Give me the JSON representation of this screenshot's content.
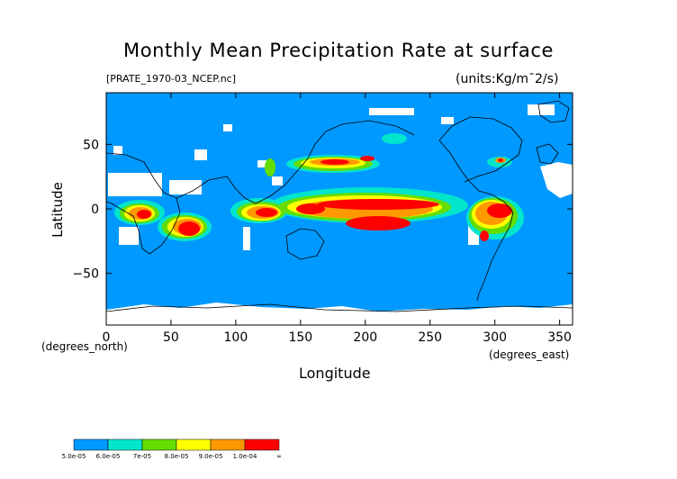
{
  "title": "Monthly Mean Precipitation Rate at surface",
  "file_label": "[PRATE_1970-03_NCEP.nc]",
  "units_label": "(units:Kg/m¯2/s)",
  "map": {
    "lon_range": [
      0,
      360
    ],
    "lat_range": [
      -90,
      90
    ],
    "background_color": "#0099ff"
  },
  "chart_data": {
    "type": "heatmap",
    "title": "Monthly Mean Precipitation Rate at surface",
    "xlabel": "Longitude",
    "ylabel": "Latitude",
    "x_units": "(degrees_east)",
    "y_units": "(degrees_north)",
    "x_ticks": [
      0,
      50,
      100,
      150,
      200,
      250,
      300,
      350
    ],
    "y_ticks": [
      50,
      0,
      -50
    ],
    "xlim": [
      0,
      360
    ],
    "ylim": [
      -90,
      90
    ]
  },
  "axes": {
    "x_ticks": [
      "0",
      "50",
      "100",
      "150",
      "200",
      "250",
      "300",
      "350"
    ],
    "y_ticks": [
      "50",
      "0",
      "−50"
    ],
    "x_label": "Longitude",
    "y_label": "Latitude",
    "x_units": "(degrees_east)",
    "y_units": "(degrees_north)"
  },
  "colorbar": {
    "labels": [
      "5.0e-05",
      "6.0e-05",
      "7e-05",
      "8.0e-05",
      "9.0e-05",
      "1.0e-04",
      "∞"
    ],
    "colors": [
      "#0099ff",
      "#00e5cc",
      "#66dd00",
      "#ffff00",
      "#ff9900",
      "#ff0000"
    ]
  },
  "colors": {
    "low": "#0099ff",
    "missing": "#ffffff",
    "band1": "#00e5cc",
    "band2": "#66dd00",
    "band3": "#ffff00",
    "band4": "#ff9900",
    "high": "#ff0000"
  }
}
